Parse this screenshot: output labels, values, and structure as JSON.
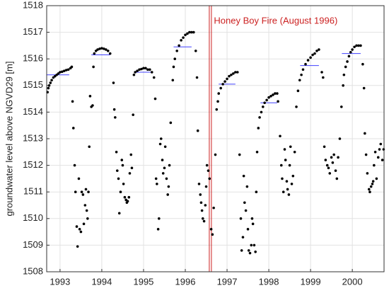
{
  "chart_data": {
    "type": "scatter",
    "y_label": "groundwater level above NGVD29 [m]",
    "xlim": [
      1992.68,
      2000.76
    ],
    "ylim": [
      1508,
      1518
    ],
    "xticks": [
      1993,
      1994,
      1995,
      1996,
      1997,
      1998,
      1999,
      2000
    ],
    "yticks": [
      1508,
      1509,
      1510,
      1511,
      1512,
      1513,
      1514,
      1515,
      1516,
      1517,
      1518
    ],
    "grid": true,
    "color": "#000000",
    "x": [
      1992.7,
      1992.72,
      1992.74,
      1992.77,
      1992.8,
      1992.84,
      1992.88,
      1992.92,
      1992.96,
      1993.0,
      1993.05,
      1993.1,
      1993.15,
      1993.2,
      1993.25,
      1993.28,
      1993.3,
      1993.32,
      1993.35,
      1993.37,
      1993.4,
      1993.42,
      1993.45,
      1993.47,
      1993.5,
      1993.52,
      1993.55,
      1993.57,
      1993.6,
      1993.62,
      1993.64,
      1993.66,
      1993.68,
      1993.7,
      1993.72,
      1993.75,
      1993.78,
      1993.8,
      1993.82,
      1993.86,
      1993.9,
      1993.95,
      1994.0,
      1994.05,
      1994.1,
      1994.15,
      1994.2,
      1994.28,
      1994.3,
      1994.32,
      1994.35,
      1994.37,
      1994.4,
      1994.42,
      1994.45,
      1994.48,
      1994.5,
      1994.52,
      1994.55,
      1994.58,
      1994.6,
      1994.62,
      1994.65,
      1994.67,
      1994.7,
      1994.72,
      1994.75,
      1994.77,
      1994.8,
      1994.85,
      1994.9,
      1994.95,
      1995.0,
      1995.05,
      1995.1,
      1995.15,
      1995.2,
      1995.25,
      1995.28,
      1995.3,
      1995.32,
      1995.35,
      1995.37,
      1995.4,
      1995.42,
      1995.45,
      1995.47,
      1995.5,
      1995.52,
      1995.55,
      1995.58,
      1995.6,
      1995.62,
      1995.65,
      1995.7,
      1995.72,
      1995.75,
      1995.8,
      1995.85,
      1995.9,
      1995.95,
      1996.0,
      1996.05,
      1996.1,
      1996.15,
      1996.2,
      1996.25,
      1996.28,
      1996.3,
      1996.33,
      1996.36,
      1996.38,
      1996.4,
      1996.42,
      1996.45,
      1996.48,
      1996.5,
      1996.52,
      1996.55,
      1996.58,
      1996.62,
      1996.65,
      1996.68,
      1996.72,
      1996.75,
      1996.78,
      1996.8,
      1996.85,
      1996.9,
      1996.95,
      1997.0,
      1997.05,
      1997.1,
      1997.15,
      1997.2,
      1997.25,
      1997.3,
      1997.33,
      1997.35,
      1997.38,
      1997.4,
      1997.42,
      1997.45,
      1997.48,
      1997.5,
      1997.52,
      1997.55,
      1997.58,
      1997.6,
      1997.62,
      1997.65,
      1997.68,
      1997.7,
      1997.72,
      1997.75,
      1997.78,
      1997.82,
      1997.86,
      1997.9,
      1997.95,
      1998.0,
      1998.05,
      1998.1,
      1998.15,
      1998.2,
      1998.22,
      1998.27,
      1998.3,
      1998.32,
      1998.35,
      1998.38,
      1998.4,
      1998.43,
      1998.45,
      1998.48,
      1998.5,
      1998.52,
      1998.55,
      1998.58,
      1998.62,
      1998.66,
      1998.7,
      1998.74,
      1998.78,
      1998.82,
      1998.88,
      1998.94,
      1999.0,
      1999.05,
      1999.1,
      1999.15,
      1999.2,
      1999.27,
      1999.3,
      1999.33,
      1999.36,
      1999.4,
      1999.43,
      1999.46,
      1999.5,
      1999.53,
      1999.56,
      1999.6,
      1999.63,
      1999.66,
      1999.7,
      1999.74,
      1999.78,
      1999.8,
      1999.84,
      1999.88,
      1999.92,
      1999.96,
      2000.0,
      2000.05,
      2000.1,
      2000.15,
      2000.2,
      2000.25,
      2000.28,
      2000.3,
      2000.33,
      2000.36,
      2000.4,
      2000.42,
      2000.45,
      2000.48,
      2000.5,
      2000.52,
      2000.55,
      2000.58,
      2000.62,
      2000.65,
      2000.68,
      2000.72,
      2000.75
    ],
    "values": [
      1514.75,
      1514.9,
      1515.0,
      1515.1,
      1515.2,
      1515.3,
      1515.35,
      1515.4,
      1515.45,
      1515.5,
      1515.52,
      1515.55,
      1515.58,
      1515.6,
      1515.65,
      1515.7,
      1514.4,
      1513.4,
      1512,
      1511,
      1509.7,
      1508.95,
      1511.5,
      1509.6,
      1509.5,
      1511,
      1510.9,
      1509.8,
      1510.5,
      1511.1,
      1510.3,
      1510,
      1511,
      1512.7,
      1514.6,
      1514.2,
      1514.25,
      1515.7,
      1516.2,
      1516.3,
      1516.35,
      1516.38,
      1516.4,
      1516.38,
      1516.35,
      1516.3,
      1516.2,
      1515.1,
      1514.1,
      1513.8,
      1512.5,
      1511.8,
      1511.5,
      1510.2,
      1511,
      1512.2,
      1512,
      1511.3,
      1510.8,
      1510.7,
      1510.6,
      1510.65,
      1510.8,
      1511.7,
      1512.4,
      1511.9,
      1513.9,
      1515.4,
      1515.5,
      1515.55,
      1515.6,
      1515.62,
      1515.65,
      1515.65,
      1515.6,
      1515.6,
      1515.5,
      1515.3,
      1514.5,
      1511.5,
      1511.3,
      1509.6,
      1510.0,
      1512.8,
      1513.0,
      1512.2,
      1511.7,
      1511.9,
      1512.7,
      1511.5,
      1510.9,
      1511.2,
      1512.0,
      1513.6,
      1515.2,
      1515.7,
      1516.0,
      1516.3,
      1516.5,
      1516.7,
      1516.8,
      1516.9,
      1516.95,
      1517.0,
      1517.0,
      1517.0,
      1516.3,
      1515.3,
      1513.3,
      1511.3,
      1510.9,
      1510.6,
      1510.3,
      1510.0,
      1509.9,
      1510.5,
      1511.2,
      1512.0,
      1511.8,
      1511.5,
      1509.6,
      1509.4,
      1510.4,
      1512.4,
      1514.1,
      1514.4,
      1514.7,
      1514.9,
      1515.05,
      1515.15,
      1515.25,
      1515.35,
      1515.4,
      1515.45,
      1515.5,
      1515.5,
      1512.4,
      1510.0,
      1508.8,
      1509.3,
      1511.6,
      1510.6,
      1510.3,
      1511.2,
      1509.6,
      1508.8,
      1508.7,
      1509.0,
      1510.0,
      1509.8,
      1509.0,
      1508.75,
      1511.0,
      1512.5,
      1513.4,
      1513.8,
      1514.0,
      1514.2,
      1514.35,
      1514.45,
      1514.55,
      1514.6,
      1514.65,
      1514.7,
      1514.7,
      1514.4,
      1513.1,
      1512.0,
      1511.5,
      1511.0,
      1512.6,
      1512.2,
      1511.4,
      1511.1,
      1510.9,
      1512.0,
      1512.7,
      1511.3,
      1511.6,
      1512.5,
      1514.2,
      1514.8,
      1515.2,
      1515.4,
      1515.6,
      1515.8,
      1515.95,
      1516.05,
      1516.15,
      1516.2,
      1516.3,
      1516.35,
      1515.5,
      1515.3,
      1512.7,
      1512.2,
      1512.0,
      1511.9,
      1511.7,
      1512.3,
      1512.1,
      1512.4,
      1511.8,
      1511.5,
      1512.3,
      1513.0,
      1514.2,
      1515.0,
      1515.4,
      1515.7,
      1515.9,
      1516.1,
      1516.25,
      1516.35,
      1516.45,
      1516.5,
      1516.5,
      1516.5,
      1515.8,
      1514.9,
      1513.2,
      1512.4,
      1511.7,
      1511.1,
      1511.0,
      1511.2,
      1511.3,
      1511.4,
      1512.0,
      1512.5,
      1511.5,
      1512.3,
      1512.6,
      1512.8,
      1512.2,
      1512.6
    ],
    "reference_lines": {
      "color": "#4040ff",
      "segments": [
        {
          "x": [
            1992.68,
            1993.22
          ],
          "y": 1515.4
        },
        {
          "x": [
            1993.75,
            1994.2
          ],
          "y": 1516.15
        },
        {
          "x": [
            1994.82,
            1995.2
          ],
          "y": 1515.5
        },
        {
          "x": [
            1995.72,
            1996.15
          ],
          "y": 1516.45
        },
        {
          "x": [
            1996.8,
            1997.2
          ],
          "y": 1515.05
        },
        {
          "x": [
            1997.8,
            1998.2
          ],
          "y": 1514.35
        },
        {
          "x": [
            1998.75,
            1999.2
          ],
          "y": 1515.75
        },
        {
          "x": [
            1999.75,
            2000.2
          ],
          "y": 1516.2
        }
      ]
    },
    "event": {
      "x": 1996.6,
      "label": "Honey Boy Fire (August 1996)",
      "color": "#cc2222"
    }
  }
}
